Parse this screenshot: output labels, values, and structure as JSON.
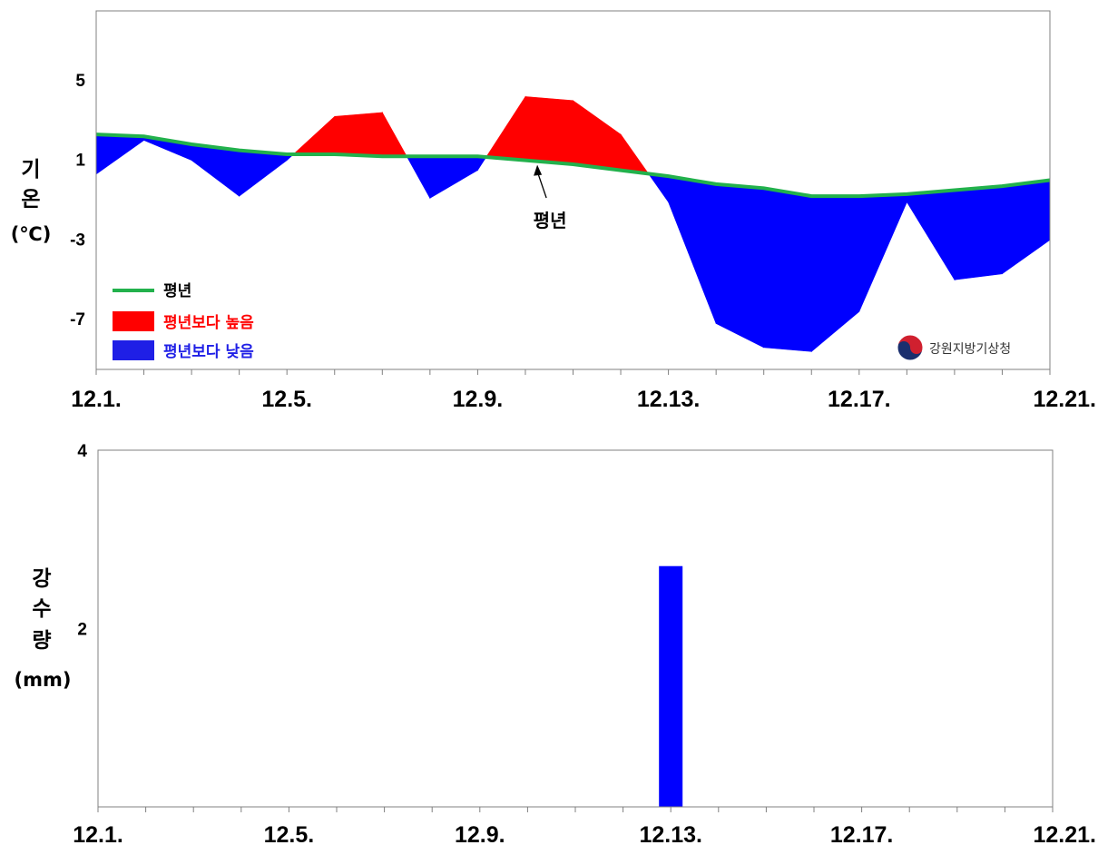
{
  "chart_data": [
    {
      "type": "area",
      "xlabel": "",
      "ylabel_chars": [
        "기",
        "온",
        "(℃)"
      ],
      "yticks": [
        5,
        1,
        -3,
        -7
      ],
      "ylim": [
        -9.5,
        8.5
      ],
      "x_tick_labels": [
        "12.1.",
        "12.5.",
        "12.9.",
        "12.13.",
        "12.17.",
        "12.21."
      ],
      "x_days": [
        1,
        2,
        3,
        4,
        5,
        6,
        7,
        8,
        9,
        10,
        11,
        12,
        13,
        14,
        15,
        16,
        17,
        18,
        19,
        20,
        21
      ],
      "series": [
        {
          "name": "평년",
          "color": "#22b14c",
          "values": [
            2.3,
            2.2,
            1.8,
            1.5,
            1.3,
            1.3,
            1.2,
            1.2,
            1.2,
            1.0,
            0.8,
            0.5,
            0.2,
            -0.2,
            -0.4,
            -0.8,
            -0.8,
            -0.7,
            -0.5,
            -0.3,
            0.0
          ]
        },
        {
          "name": "기온",
          "values": [
            0.3,
            2.0,
            1.0,
            -0.8,
            1.0,
            3.2,
            3.4,
            -0.9,
            0.5,
            4.2,
            4.0,
            2.3,
            -1.1,
            -7.2,
            -8.4,
            -8.6,
            -6.6,
            -1.1,
            -5.0,
            -4.7,
            -3.0
          ]
        }
      ],
      "legend": [
        {
          "label": "평년",
          "color": "#22b14c",
          "kind": "line"
        },
        {
          "label": "평년보다 높음",
          "color": "#ff0000",
          "kind": "box"
        },
        {
          "label": "평년보다 낮음",
          "color": "#1f1fe6",
          "kind": "box"
        }
      ],
      "legend_position": "bottom-left",
      "annotation": "평년",
      "logo_text": "강원지방기상청",
      "above_color": "#ff0000",
      "below_color": "#0000ff"
    },
    {
      "type": "bar",
      "ylabel_chars": [
        "강",
        "수",
        "량",
        "(mm)"
      ],
      "yticks": [
        4,
        2
      ],
      "ylim": [
        0,
        4
      ],
      "x_tick_labels": [
        "12.1.",
        "12.5.",
        "12.9.",
        "12.13.",
        "12.17.",
        "12.21."
      ],
      "bars": [
        {
          "x": "12.13.",
          "day": 13,
          "value": 2.7
        }
      ],
      "bar_color": "#0000ff"
    }
  ]
}
